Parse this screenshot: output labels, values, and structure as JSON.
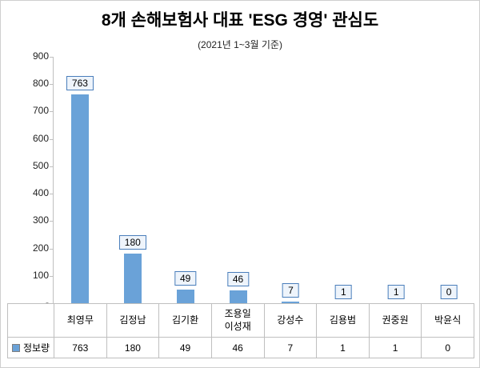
{
  "title": "8개 손해보험사 대표 'ESG 경영' 관심도",
  "subtitle": "(2021년 1~3월 기준)",
  "chart_data": {
    "type": "bar",
    "categories": [
      "최영무",
      "김정남",
      "김기환",
      "조용일\n이성재",
      "강성수",
      "김용범",
      "권중원",
      "박윤식"
    ],
    "series": [
      {
        "name": "정보량",
        "values": [
          763,
          180,
          49,
          46,
          7,
          1,
          1,
          0
        ]
      }
    ],
    "title": "8개 손해보험사 대표 'ESG 경영' 관심도",
    "subtitle": "(2021년 1~3월 기준)",
    "xlabel": "",
    "ylabel": "",
    "ylim": [
      0,
      900
    ],
    "ytick_labels": [
      "900",
      "800",
      "700",
      "600",
      "500",
      "400",
      "300",
      "200",
      "100",
      "-"
    ],
    "grid": false,
    "legend_position": "bottom-table",
    "bar_color": "#6aa2d8",
    "label_border_color": "#4a7ebb",
    "label_fill_color": "#eef4fb"
  }
}
